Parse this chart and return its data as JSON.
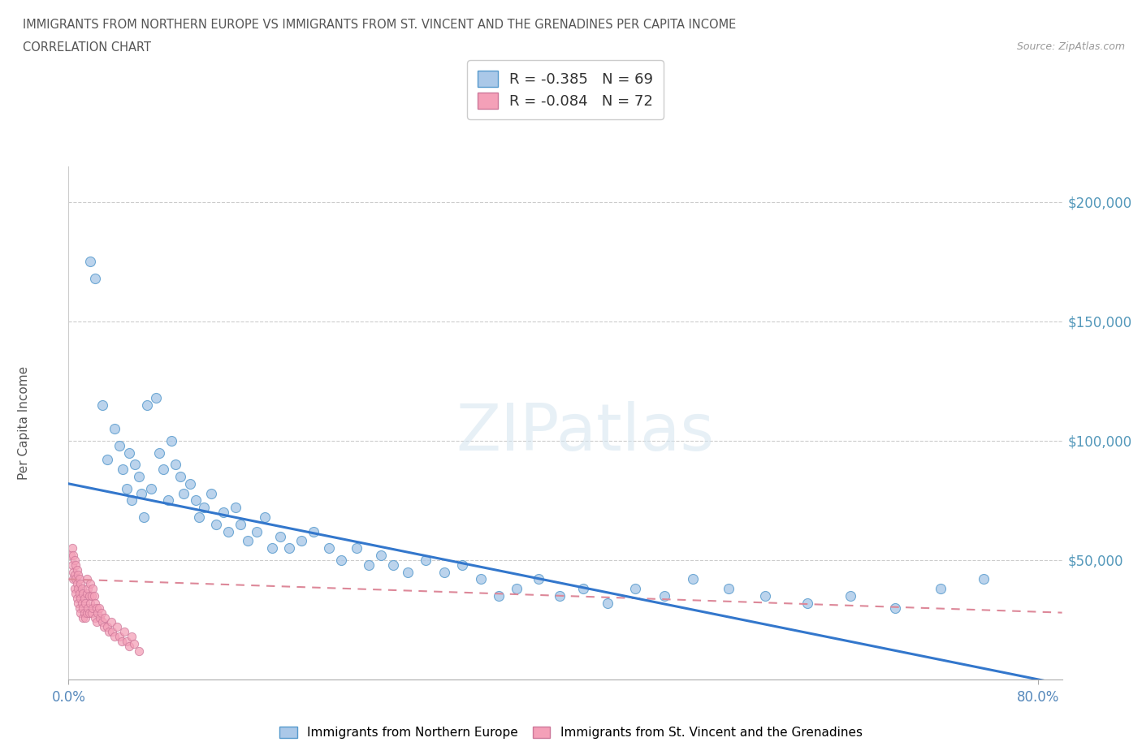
{
  "title_line1": "IMMIGRANTS FROM NORTHERN EUROPE VS IMMIGRANTS FROM ST. VINCENT AND THE GRENADINES PER CAPITA INCOME",
  "title_line2": "CORRELATION CHART",
  "source_text": "Source: ZipAtlas.com",
  "ylabel": "Per Capita Income",
  "xlim": [
    0.0,
    0.82
  ],
  "ylim": [
    0,
    215000
  ],
  "ytick_labels": [
    "$50,000",
    "$100,000",
    "$150,000",
    "$200,000"
  ],
  "ytick_positions": [
    50000,
    100000,
    150000,
    200000
  ],
  "color_blue": "#aac8e8",
  "color_pink": "#f4a0b8",
  "line_blue": "#3377cc",
  "watermark_text": "ZIPatlas",
  "blue_x": [
    0.018,
    0.022,
    0.028,
    0.032,
    0.038,
    0.042,
    0.045,
    0.048,
    0.05,
    0.052,
    0.055,
    0.058,
    0.06,
    0.062,
    0.065,
    0.068,
    0.072,
    0.075,
    0.078,
    0.082,
    0.085,
    0.088,
    0.092,
    0.095,
    0.1,
    0.105,
    0.108,
    0.112,
    0.118,
    0.122,
    0.128,
    0.132,
    0.138,
    0.142,
    0.148,
    0.155,
    0.162,
    0.168,
    0.175,
    0.182,
    0.192,
    0.202,
    0.215,
    0.225,
    0.238,
    0.248,
    0.258,
    0.268,
    0.28,
    0.295,
    0.31,
    0.325,
    0.34,
    0.355,
    0.37,
    0.388,
    0.405,
    0.425,
    0.445,
    0.468,
    0.492,
    0.515,
    0.545,
    0.575,
    0.61,
    0.645,
    0.682,
    0.72,
    0.755
  ],
  "blue_y": [
    175000,
    168000,
    115000,
    92000,
    105000,
    98000,
    88000,
    80000,
    95000,
    75000,
    90000,
    85000,
    78000,
    68000,
    115000,
    80000,
    118000,
    95000,
    88000,
    75000,
    100000,
    90000,
    85000,
    78000,
    82000,
    75000,
    68000,
    72000,
    78000,
    65000,
    70000,
    62000,
    72000,
    65000,
    58000,
    62000,
    68000,
    55000,
    60000,
    55000,
    58000,
    62000,
    55000,
    50000,
    55000,
    48000,
    52000,
    48000,
    45000,
    50000,
    45000,
    48000,
    42000,
    35000,
    38000,
    42000,
    35000,
    38000,
    32000,
    38000,
    35000,
    42000,
    38000,
    35000,
    32000,
    35000,
    30000,
    38000,
    42000
  ],
  "pink_x": [
    0.002,
    0.003,
    0.003,
    0.004,
    0.004,
    0.004,
    0.005,
    0.005,
    0.005,
    0.006,
    0.006,
    0.006,
    0.007,
    0.007,
    0.007,
    0.008,
    0.008,
    0.008,
    0.009,
    0.009,
    0.009,
    0.01,
    0.01,
    0.01,
    0.011,
    0.011,
    0.012,
    0.012,
    0.012,
    0.013,
    0.013,
    0.014,
    0.014,
    0.015,
    0.015,
    0.015,
    0.016,
    0.016,
    0.017,
    0.017,
    0.018,
    0.018,
    0.019,
    0.019,
    0.02,
    0.02,
    0.021,
    0.022,
    0.022,
    0.023,
    0.023,
    0.024,
    0.025,
    0.026,
    0.027,
    0.028,
    0.029,
    0.03,
    0.032,
    0.033,
    0.035,
    0.036,
    0.038,
    0.04,
    0.042,
    0.044,
    0.046,
    0.048,
    0.05,
    0.052,
    0.054,
    0.058
  ],
  "pink_y": [
    52000,
    48000,
    55000,
    45000,
    52000,
    42000,
    50000,
    44000,
    38000,
    48000,
    42000,
    36000,
    46000,
    40000,
    34000,
    44000,
    38000,
    32000,
    42000,
    36000,
    30000,
    40000,
    34000,
    28000,
    38000,
    32000,
    36000,
    30000,
    26000,
    34000,
    28000,
    32000,
    26000,
    42000,
    36000,
    28000,
    38000,
    30000,
    35000,
    28000,
    40000,
    32000,
    35000,
    28000,
    38000,
    30000,
    35000,
    32000,
    26000,
    30000,
    24000,
    28000,
    30000,
    26000,
    28000,
    24000,
    22000,
    26000,
    22000,
    20000,
    24000,
    20000,
    18000,
    22000,
    18000,
    16000,
    20000,
    16000,
    14000,
    18000,
    15000,
    12000
  ],
  "blue_line_x": [
    0.0,
    0.82
  ],
  "blue_line_y": [
    82000,
    -2000
  ],
  "pink_line_x": [
    0.0,
    0.82
  ],
  "pink_line_y": [
    42000,
    28000
  ]
}
